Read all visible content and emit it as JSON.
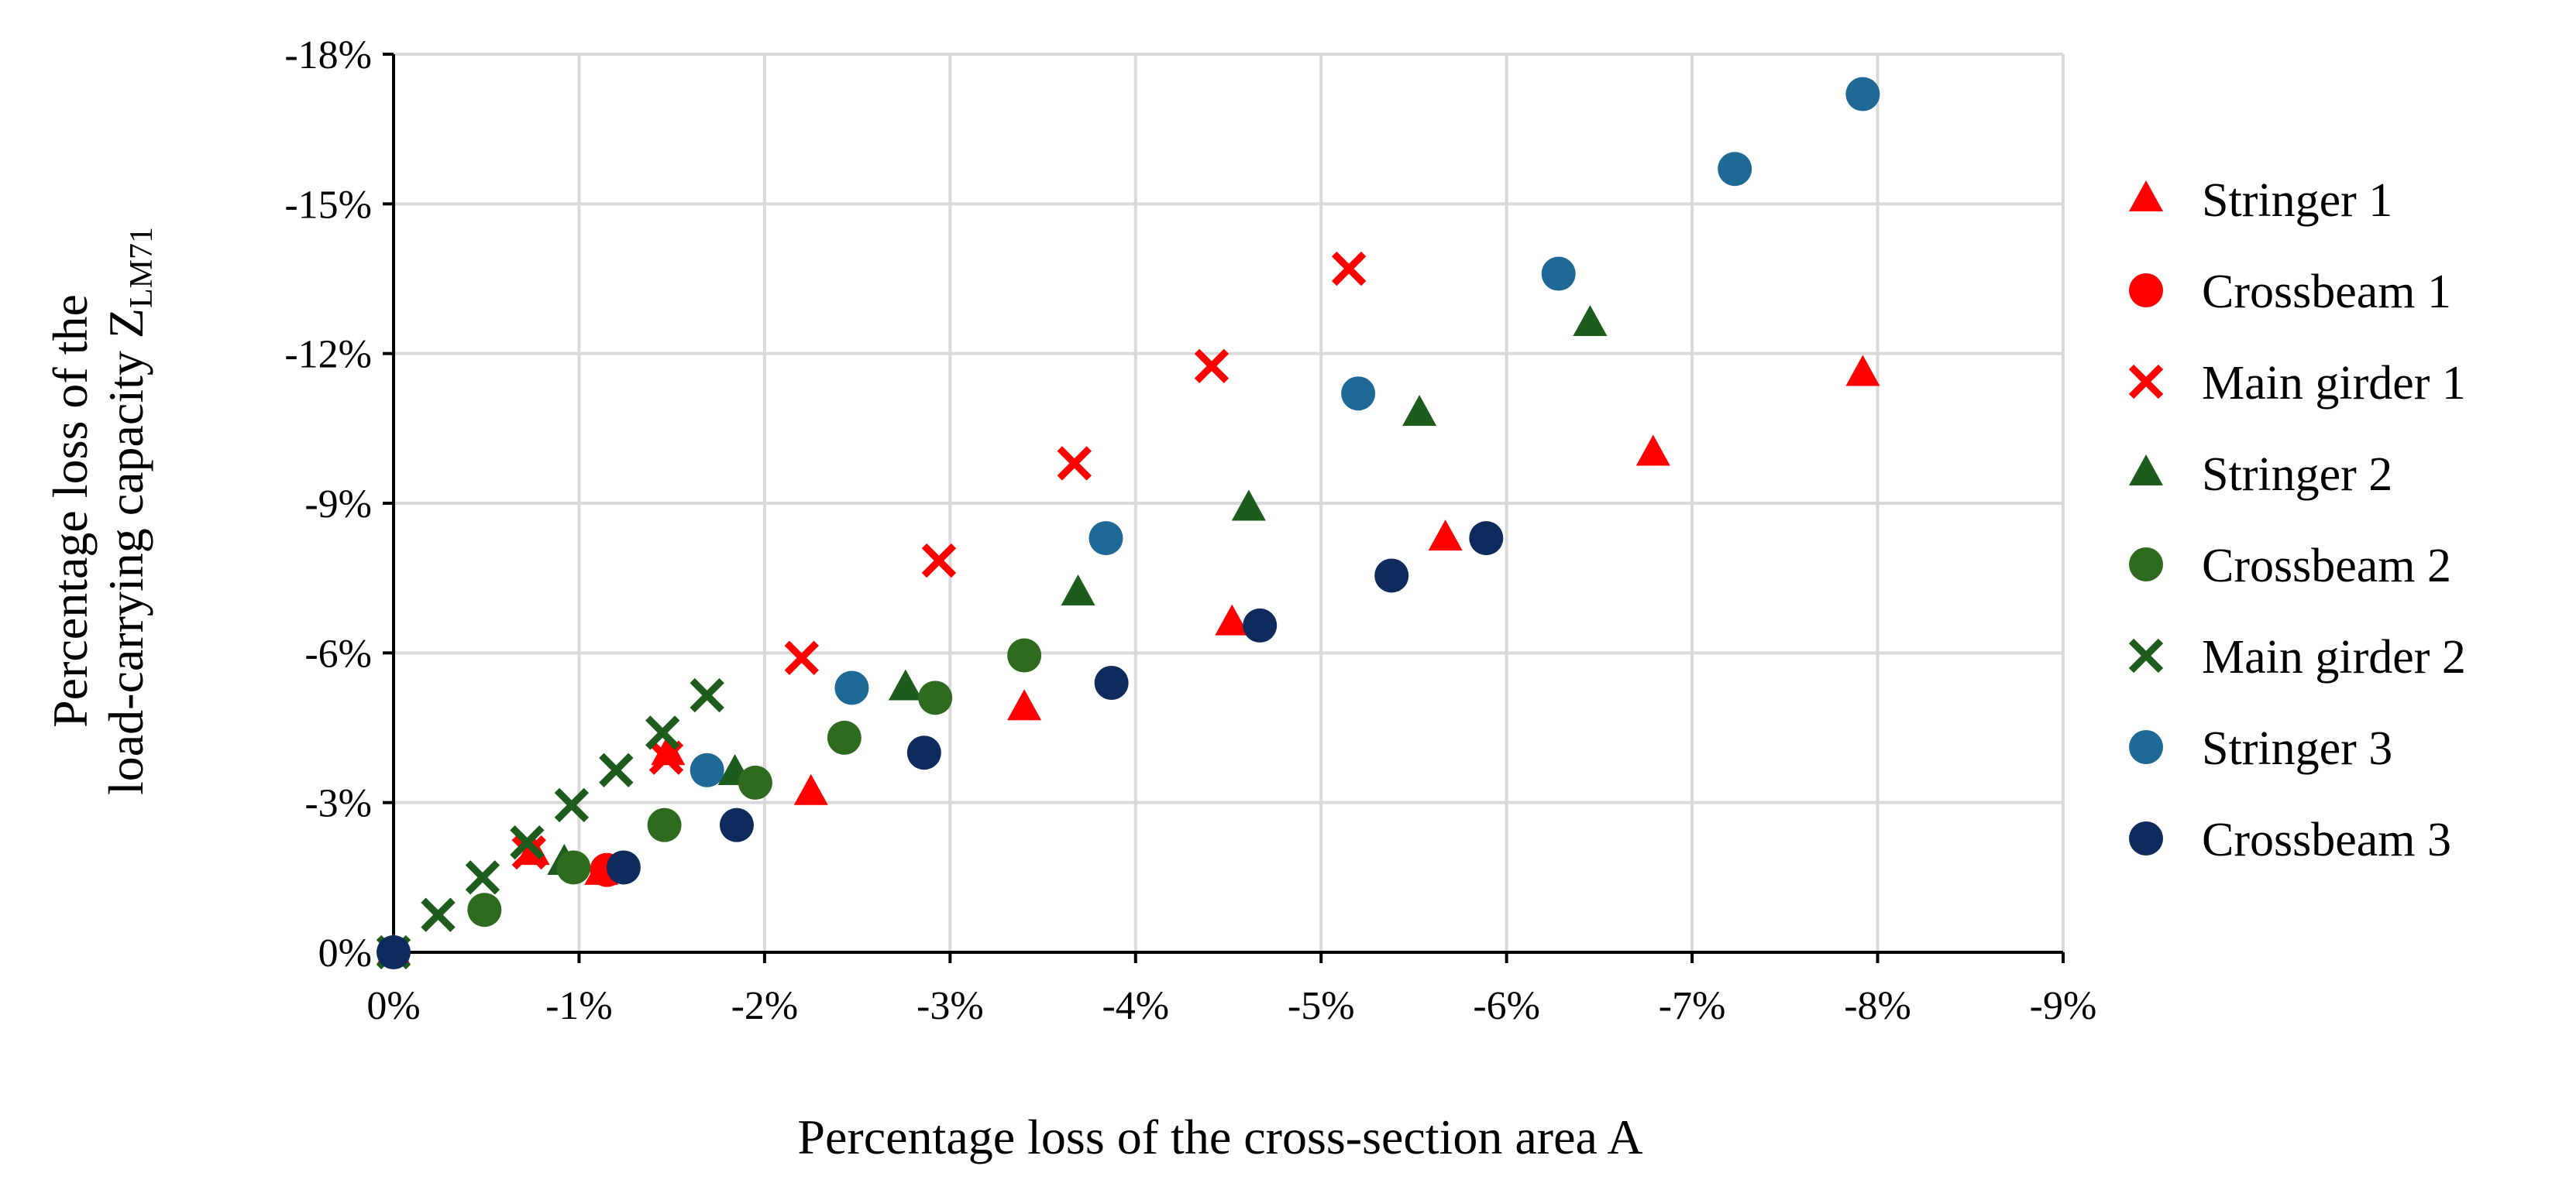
{
  "chart_data": {
    "type": "scatter",
    "title": "",
    "xlabel": "Percentage loss of the cross-section area A",
    "ylabel_line1": "Percentage loss of the",
    "ylabel_line2_main": "load-carrying capacity Z",
    "ylabel_line2_sub": "LM71",
    "xlim": [
      0,
      -9
    ],
    "ylim": [
      0,
      -18
    ],
    "x_ticks": [
      0,
      -1,
      -2,
      -3,
      -4,
      -5,
      -6,
      -7,
      -8,
      -9
    ],
    "y_ticks": [
      0,
      -3,
      -6,
      -9,
      -12,
      -15,
      -18
    ],
    "x_tick_labels": [
      "0%",
      "-1%",
      "-2%",
      "-3%",
      "-4%",
      "-5%",
      "-6%",
      "-7%",
      "-8%",
      "-9%"
    ],
    "y_tick_labels": [
      "0%",
      "-3%",
      "-6%",
      "-9%",
      "-12%",
      "-15%",
      "-18%"
    ],
    "grid": true,
    "legend_position": "right",
    "series": [
      {
        "name": "Stringer 1",
        "marker": "triangle",
        "color": "#ff0000",
        "points": [
          [
            0,
            0
          ],
          [
            -0.75,
            -2.0
          ],
          [
            -1.12,
            -1.6
          ],
          [
            -1.48,
            -4.0
          ],
          [
            -2.25,
            -3.2
          ],
          [
            -3.4,
            -4.9
          ],
          [
            -4.52,
            -6.6
          ],
          [
            -5.67,
            -8.3
          ],
          [
            -6.79,
            -10.0
          ],
          [
            -7.92,
            -11.6
          ]
        ]
      },
      {
        "name": "Crossbeam 1",
        "marker": "circle",
        "color": "#ff0000",
        "points": [
          [
            -1.15,
            -1.65
          ]
        ]
      },
      {
        "name": "Main girder 1",
        "marker": "x",
        "color": "#ff0000",
        "points": [
          [
            -0.73,
            -2.0
          ],
          [
            -1.47,
            -3.9
          ],
          [
            -2.2,
            -5.9
          ],
          [
            -2.94,
            -7.85
          ],
          [
            -3.67,
            -9.8
          ],
          [
            -4.41,
            -11.75
          ],
          [
            -5.15,
            -13.7
          ]
        ]
      },
      {
        "name": "Stringer 2",
        "marker": "triangle",
        "color": "#1e5c1e",
        "points": [
          [
            -0.92,
            -1.8
          ],
          [
            -1.84,
            -3.6
          ],
          [
            -2.76,
            -5.3
          ],
          [
            -3.69,
            -7.2
          ],
          [
            -4.61,
            -8.9
          ],
          [
            -5.53,
            -10.8
          ],
          [
            -6.45,
            -12.6
          ]
        ]
      },
      {
        "name": "Crossbeam 2",
        "marker": "circle",
        "color": "#2e6b1f",
        "points": [
          [
            -0.49,
            -0.85
          ],
          [
            -0.97,
            -1.7
          ],
          [
            -1.46,
            -2.55
          ],
          [
            -1.95,
            -3.4
          ],
          [
            -2.43,
            -4.3
          ],
          [
            -2.92,
            -5.1
          ],
          [
            -3.4,
            -5.95
          ]
        ]
      },
      {
        "name": "Main girder 2",
        "marker": "x",
        "color": "#1e5c1e",
        "points": [
          [
            0,
            0
          ],
          [
            -0.24,
            -0.75
          ],
          [
            -0.48,
            -1.5
          ],
          [
            -0.72,
            -2.2
          ],
          [
            -0.96,
            -2.95
          ],
          [
            -1.2,
            -3.65
          ],
          [
            -1.45,
            -4.4
          ],
          [
            -1.69,
            -5.15
          ]
        ]
      },
      {
        "name": "Stringer 3",
        "marker": "circle",
        "color": "#1f6996",
        "points": [
          [
            -1.69,
            -3.65
          ],
          [
            -2.47,
            -5.3
          ],
          [
            -3.84,
            -8.3
          ],
          [
            -5.2,
            -11.2
          ],
          [
            -6.28,
            -13.6
          ],
          [
            -7.23,
            -15.7
          ],
          [
            -7.92,
            -17.2
          ]
        ]
      },
      {
        "name": "Crossbeam 3",
        "marker": "circle",
        "color": "#0f2a5c",
        "points": [
          [
            0,
            0
          ],
          [
            -1.24,
            -1.7
          ],
          [
            -1.85,
            -2.55
          ],
          [
            -2.86,
            -4.0
          ],
          [
            -3.87,
            -5.4
          ],
          [
            -4.67,
            -6.55
          ],
          [
            -5.38,
            -7.55
          ],
          [
            -5.89,
            -8.3
          ]
        ]
      }
    ]
  }
}
